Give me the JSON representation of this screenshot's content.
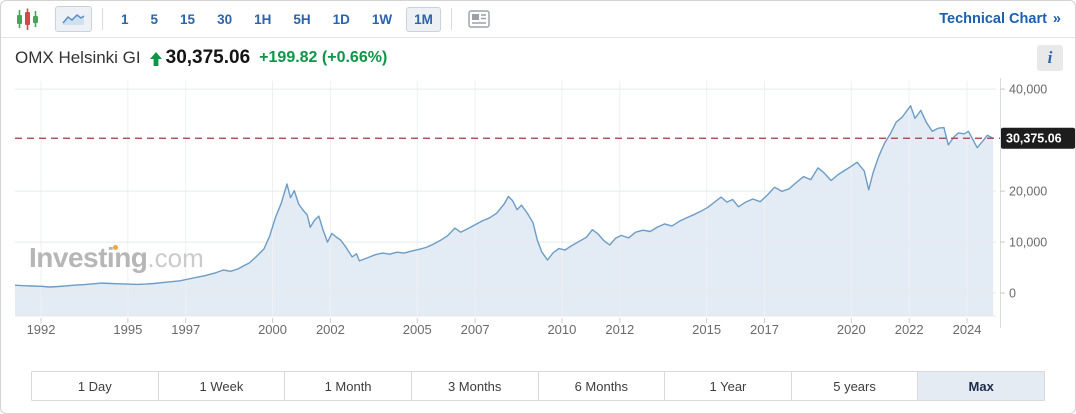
{
  "toolbar": {
    "chart_type_icons": [
      {
        "name": "candlestick-chart-icon",
        "selected": false
      },
      {
        "name": "area-chart-icon",
        "selected": true
      }
    ],
    "timeframes": [
      {
        "label": "1"
      },
      {
        "label": "5"
      },
      {
        "label": "15"
      },
      {
        "label": "30"
      },
      {
        "label": "1H"
      },
      {
        "label": "5H"
      },
      {
        "label": "1D"
      },
      {
        "label": "1W"
      },
      {
        "label": "1M",
        "selected": true
      }
    ],
    "news_icon": "news-panel-icon",
    "technical_chart_label": "Technical Chart",
    "technical_chart_arrow": "»"
  },
  "header": {
    "instrument": "OMX Helsinki GI",
    "direction": "up",
    "last_price": "30,375.06",
    "change": "+199.82",
    "change_percent": "(+0.66%)",
    "info_label": "i"
  },
  "watermark": {
    "brand": "Investing",
    "suffix": ".com"
  },
  "range_buttons": [
    {
      "label": "1 Day"
    },
    {
      "label": "1 Week"
    },
    {
      "label": "1 Month"
    },
    {
      "label": "3 Months"
    },
    {
      "label": "6 Months"
    },
    {
      "label": "1 Year"
    },
    {
      "label": "5 years"
    },
    {
      "label": "Max",
      "selected": true
    }
  ],
  "colors": {
    "accent_blue": "#2a64ad",
    "link_blue": "#1a5fb0",
    "up_green": "#0e9648",
    "candle_green": "#43a45c",
    "candle_red": "#d24949",
    "line": "#6c9cc7",
    "fill": "#e3ecf5",
    "dashed_line": "#9e3a45",
    "price_label_bg": "#1d1d1d",
    "price_label_text": "#ffffff",
    "grid_horizontal": "#e8eaec",
    "grid_vertical": "#eef0f2",
    "axis_text": "#6a6a6a",
    "selected_bg": "#e4ebf3",
    "watermark_gray": "#b6b6b6",
    "watermark_dot_orange": "#f2a73a"
  },
  "chart_data": {
    "type": "area",
    "series_name": "OMX Helsinki GI",
    "xlabel": "",
    "ylabel": "",
    "grid": true,
    "legend": "none",
    "xlim": [
      1991.1,
      2025.0
    ],
    "ylim": [
      -4500,
      41600
    ],
    "x_ticks": [
      {
        "value": 1992,
        "label": "1992"
      },
      {
        "value": 1995,
        "label": "1995"
      },
      {
        "value": 1997,
        "label": "1997"
      },
      {
        "value": 2000,
        "label": "2000"
      },
      {
        "value": 2002,
        "label": "2002"
      },
      {
        "value": 2005,
        "label": "2005"
      },
      {
        "value": 2007,
        "label": "2007"
      },
      {
        "value": 2010,
        "label": "2010"
      },
      {
        "value": 2012,
        "label": "2012"
      },
      {
        "value": 2015,
        "label": "2015"
      },
      {
        "value": 2017,
        "label": "2017"
      },
      {
        "value": 2020,
        "label": "2020"
      },
      {
        "value": 2022,
        "label": "2022"
      },
      {
        "value": 2024,
        "label": "2024"
      }
    ],
    "y_ticks": [
      {
        "value": 0,
        "label": "0"
      },
      {
        "value": 10000,
        "label": "10,000"
      },
      {
        "value": 20000,
        "label": "20,000"
      },
      {
        "value": 40000,
        "label": "40,000"
      }
    ],
    "last_price": 30375.06,
    "last_price_label": "30,375.06",
    "points": [
      [
        1991.1,
        1550
      ],
      [
        1991.4,
        1450
      ],
      [
        1991.7,
        1380
      ],
      [
        1992.0,
        1320
      ],
      [
        1992.3,
        1180
      ],
      [
        1992.6,
        1290
      ],
      [
        1992.9,
        1430
      ],
      [
        1993.2,
        1560
      ],
      [
        1993.5,
        1660
      ],
      [
        1993.8,
        1810
      ],
      [
        1994.1,
        1950
      ],
      [
        1994.4,
        1880
      ],
      [
        1994.7,
        1820
      ],
      [
        1995.0,
        1760
      ],
      [
        1995.3,
        1690
      ],
      [
        1995.6,
        1760
      ],
      [
        1995.9,
        1870
      ],
      [
        1996.2,
        2060
      ],
      [
        1996.5,
        2230
      ],
      [
        1996.8,
        2410
      ],
      [
        1997.1,
        2760
      ],
      [
        1997.4,
        3120
      ],
      [
        1997.7,
        3460
      ],
      [
        1998.0,
        3920
      ],
      [
        1998.3,
        4520
      ],
      [
        1998.55,
        4260
      ],
      [
        1998.8,
        4720
      ],
      [
        1999.0,
        5320
      ],
      [
        1999.2,
        5920
      ],
      [
        1999.45,
        7210
      ],
      [
        1999.7,
        8650
      ],
      [
        1999.9,
        11200
      ],
      [
        2000.1,
        14800
      ],
      [
        2000.3,
        17600
      ],
      [
        2000.5,
        21400
      ],
      [
        2000.62,
        18700
      ],
      [
        2000.75,
        20100
      ],
      [
        2000.9,
        17500
      ],
      [
        2001.05,
        16300
      ],
      [
        2001.2,
        15300
      ],
      [
        2001.3,
        12900
      ],
      [
        2001.45,
        14300
      ],
      [
        2001.6,
        15100
      ],
      [
        2001.75,
        12300
      ],
      [
        2001.9,
        10000
      ],
      [
        2002.05,
        11700
      ],
      [
        2002.2,
        11000
      ],
      [
        2002.35,
        10400
      ],
      [
        2002.55,
        8900
      ],
      [
        2002.75,
        7100
      ],
      [
        2002.9,
        7700
      ],
      [
        2003.0,
        6300
      ],
      [
        2003.3,
        6950
      ],
      [
        2003.55,
        7520
      ],
      [
        2003.8,
        7840
      ],
      [
        2004.05,
        7630
      ],
      [
        2004.3,
        8020
      ],
      [
        2004.55,
        7830
      ],
      [
        2004.8,
        8240
      ],
      [
        2005.05,
        8560
      ],
      [
        2005.3,
        8930
      ],
      [
        2005.55,
        9560
      ],
      [
        2005.8,
        10340
      ],
      [
        2006.05,
        11260
      ],
      [
        2006.3,
        12740
      ],
      [
        2006.5,
        11930
      ],
      [
        2006.75,
        12650
      ],
      [
        2007.0,
        13420
      ],
      [
        2007.25,
        14150
      ],
      [
        2007.5,
        14760
      ],
      [
        2007.75,
        15680
      ],
      [
        2008.0,
        17450
      ],
      [
        2008.15,
        18950
      ],
      [
        2008.3,
        18100
      ],
      [
        2008.45,
        16350
      ],
      [
        2008.6,
        17250
      ],
      [
        2008.8,
        15700
      ],
      [
        2009.0,
        13800
      ],
      [
        2009.15,
        10400
      ],
      [
        2009.3,
        8100
      ],
      [
        2009.5,
        6480
      ],
      [
        2009.7,
        7920
      ],
      [
        2009.9,
        8740
      ],
      [
        2010.1,
        8420
      ],
      [
        2010.35,
        9340
      ],
      [
        2010.6,
        10150
      ],
      [
        2010.85,
        10960
      ],
      [
        2011.05,
        12420
      ],
      [
        2011.25,
        11580
      ],
      [
        2011.45,
        10280
      ],
      [
        2011.65,
        9420
      ],
      [
        2011.85,
        10740
      ],
      [
        2012.05,
        11320
      ],
      [
        2012.3,
        10820
      ],
      [
        2012.55,
        11940
      ],
      [
        2012.8,
        12340
      ],
      [
        2013.05,
        12080
      ],
      [
        2013.3,
        12930
      ],
      [
        2013.55,
        13560
      ],
      [
        2013.8,
        13140
      ],
      [
        2014.05,
        14060
      ],
      [
        2014.3,
        14740
      ],
      [
        2014.55,
        15360
      ],
      [
        2014.8,
        16040
      ],
      [
        2015.05,
        16840
      ],
      [
        2015.3,
        17960
      ],
      [
        2015.5,
        18820
      ],
      [
        2015.7,
        17840
      ],
      [
        2015.9,
        18360
      ],
      [
        2016.1,
        16920
      ],
      [
        2016.35,
        17840
      ],
      [
        2016.6,
        18460
      ],
      [
        2016.85,
        17920
      ],
      [
        2017.1,
        19240
      ],
      [
        2017.35,
        20760
      ],
      [
        2017.6,
        19940
      ],
      [
        2017.85,
        20460
      ],
      [
        2018.1,
        21680
      ],
      [
        2018.35,
        22840
      ],
      [
        2018.6,
        22260
      ],
      [
        2018.85,
        24560
      ],
      [
        2019.05,
        23640
      ],
      [
        2019.3,
        22080
      ],
      [
        2019.55,
        23260
      ],
      [
        2019.8,
        24160
      ],
      [
        2020.0,
        24860
      ],
      [
        2020.2,
        25680
      ],
      [
        2020.45,
        23920
      ],
      [
        2020.6,
        20260
      ],
      [
        2020.75,
        23560
      ],
      [
        2020.95,
        26840
      ],
      [
        2021.15,
        29420
      ],
      [
        2021.35,
        31260
      ],
      [
        2021.55,
        33540
      ],
      [
        2021.75,
        34460
      ],
      [
        2021.9,
        35620
      ],
      [
        2022.05,
        36740
      ],
      [
        2022.2,
        34260
      ],
      [
        2022.4,
        35840
      ],
      [
        2022.6,
        33420
      ],
      [
        2022.8,
        31740
      ],
      [
        2023.0,
        32340
      ],
      [
        2023.2,
        32460
      ],
      [
        2023.35,
        29060
      ],
      [
        2023.55,
        30640
      ],
      [
        2023.7,
        31420
      ],
      [
        2023.9,
        31240
      ],
      [
        2024.05,
        31720
      ],
      [
        2024.2,
        30140
      ],
      [
        2024.35,
        28520
      ],
      [
        2024.55,
        29860
      ],
      [
        2024.7,
        30940
      ],
      [
        2024.9,
        30375.06
      ]
    ]
  }
}
